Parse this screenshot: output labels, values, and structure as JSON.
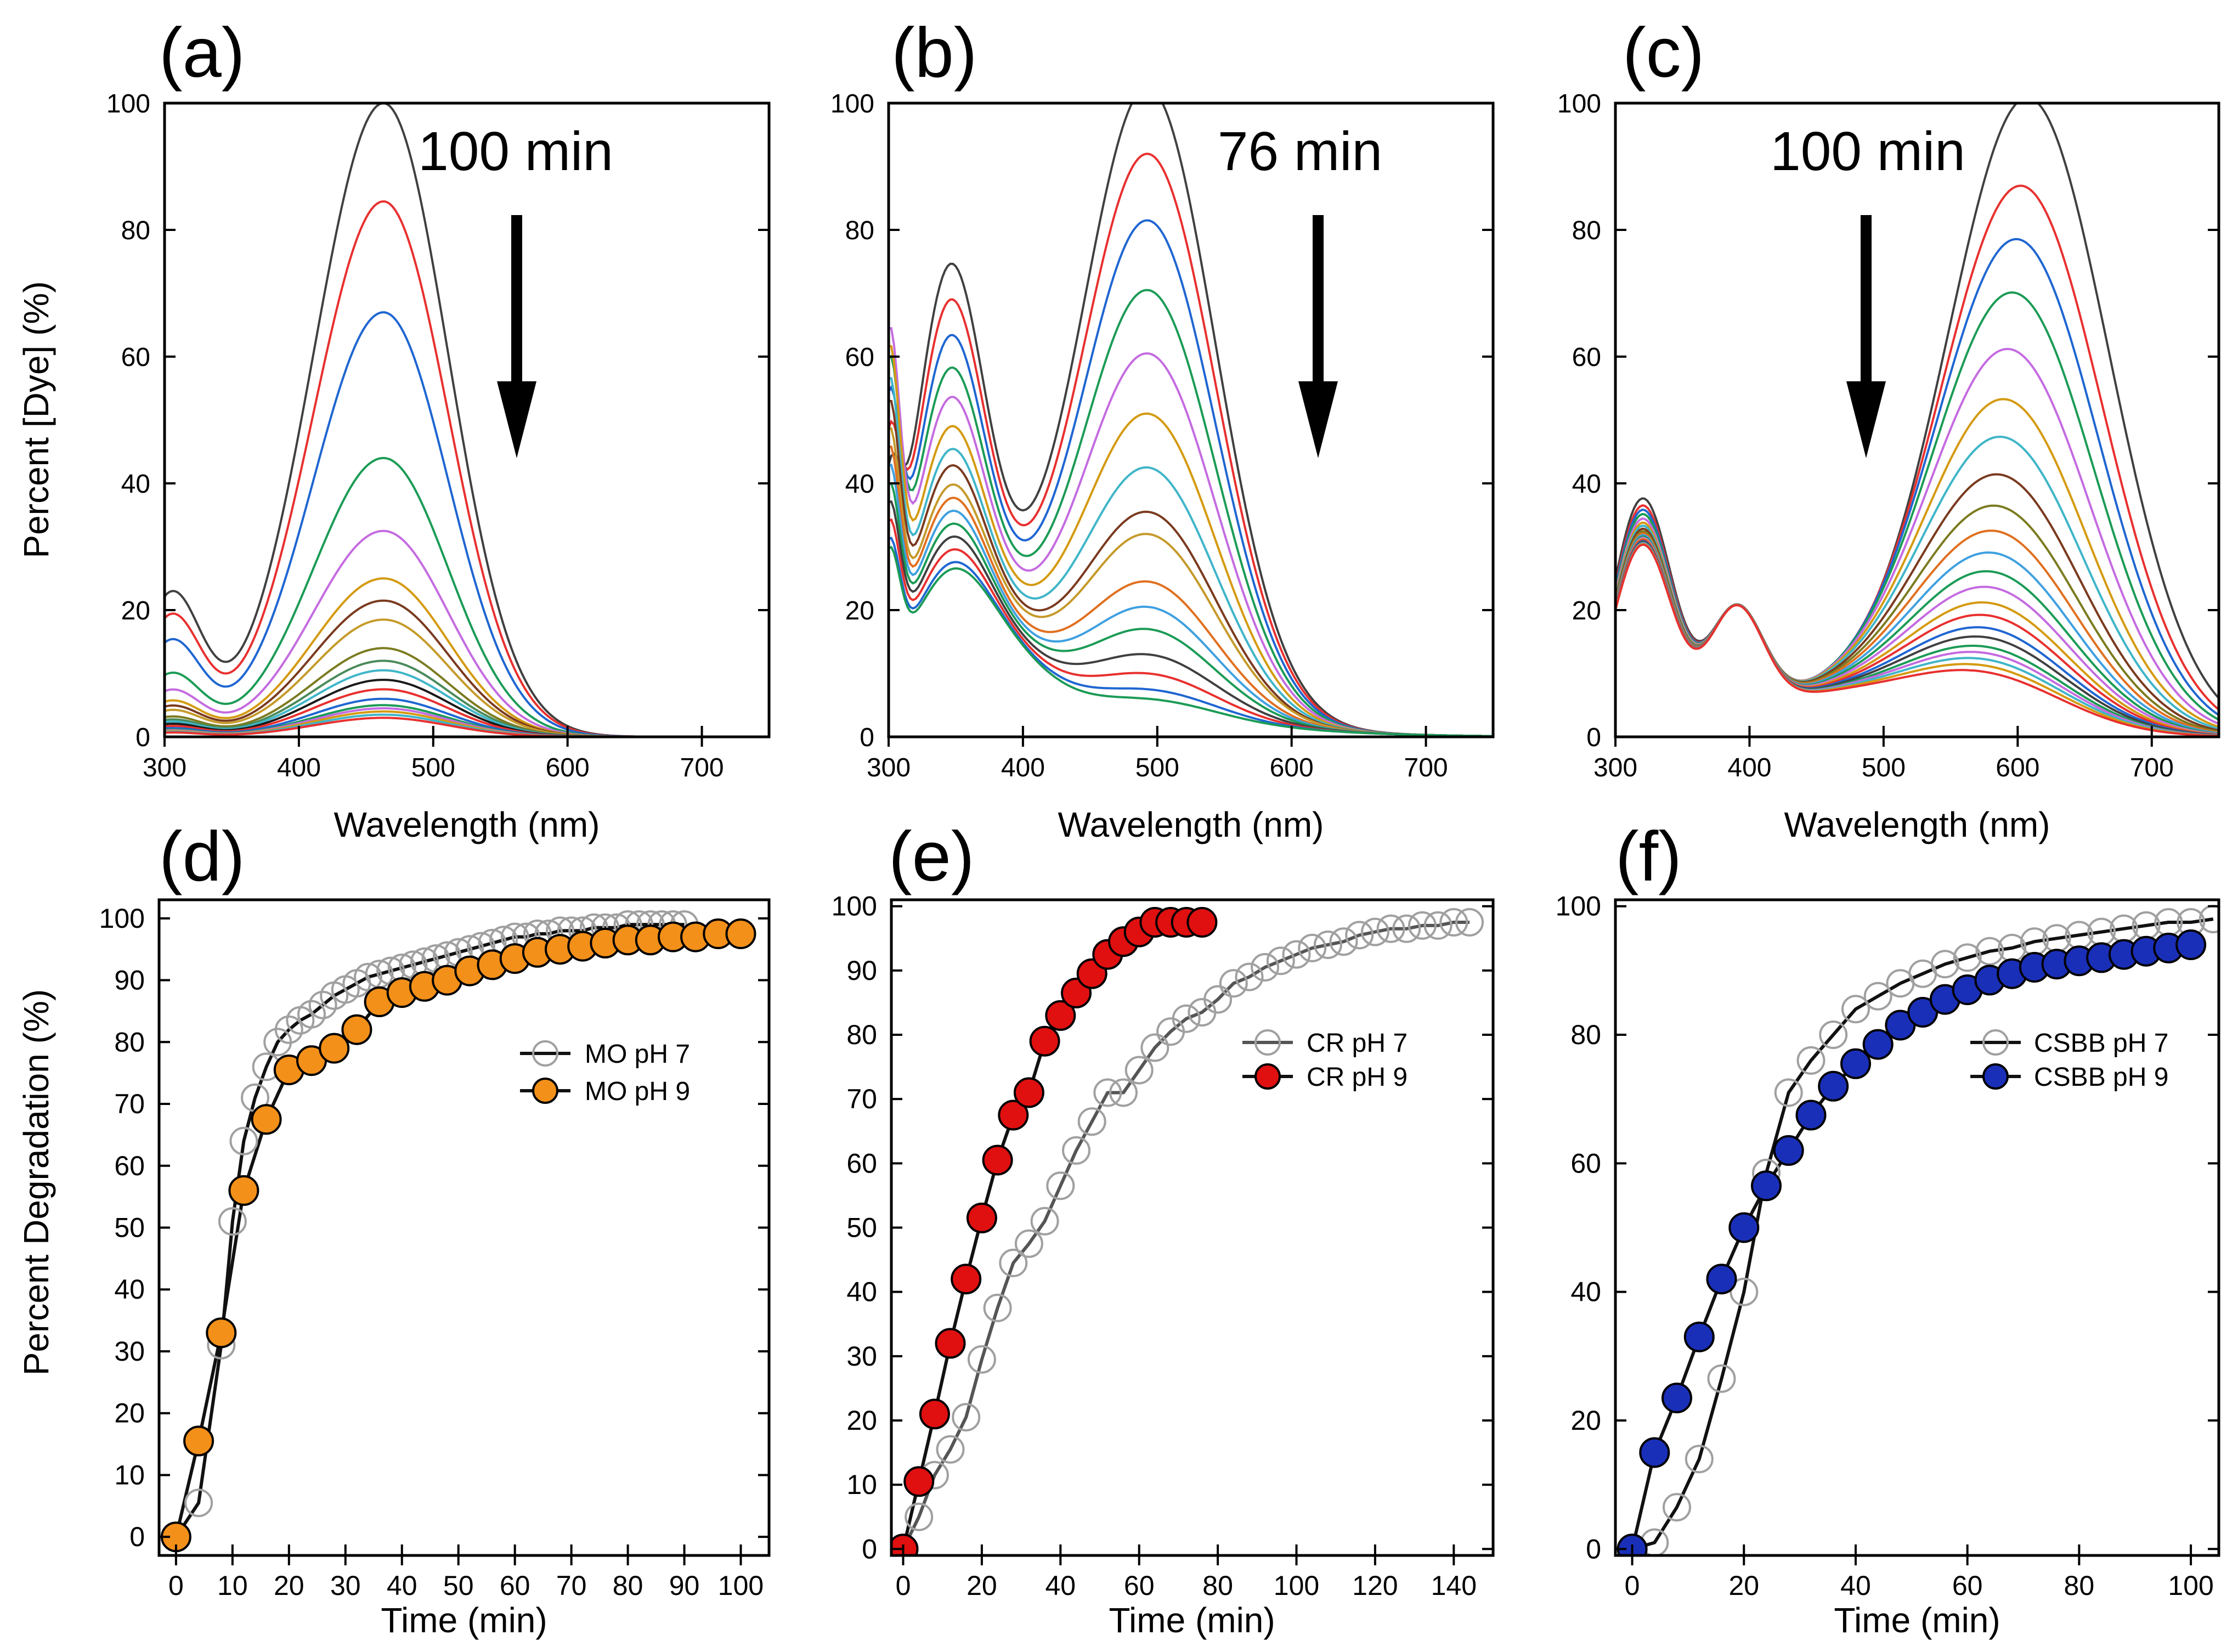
{
  "figure": {
    "ylabel_top": "Percent [Dye] (%)",
    "ylabel_bottom": "Percent Degradation (%)"
  },
  "chart_data": [
    {
      "panel": "(a)",
      "type": "line",
      "xlabel": "Wavelength (nm)",
      "xlim": [
        300,
        750
      ],
      "ylim": [
        0,
        100
      ],
      "xticks": [
        300,
        400,
        500,
        600,
        700
      ],
      "yticks": [
        0,
        20,
        40,
        60,
        80,
        100
      ],
      "annotation": "100 min",
      "arrow": "down",
      "model": {
        "peak_center": 463,
        "peak_width_left": 52,
        "peak_width_right": 48,
        "side_band_center": 305,
        "side_band_width": 22,
        "side_band_ratio": 0.22,
        "dip_center": 335
      },
      "peak_heights": [
        100,
        84.5,
        67,
        44,
        32.5,
        25,
        21.5,
        18.5,
        14,
        12,
        10.5,
        9,
        7.5,
        6,
        5,
        4.5,
        4,
        3.5,
        3
      ],
      "series_colors": [
        "#404040",
        "#e8302f",
        "#1f66d1",
        "#1b9b56",
        "#c46be0",
        "#d49a10",
        "#7a3a1f",
        "#c59a2a",
        "#7b7b20",
        "#4a8a5a",
        "#3fb5c8",
        "#1a1a1a",
        "#e8302f",
        "#1f66d1",
        "#1b9b56",
        "#c46be0",
        "#d49a10",
        "#3fb5c8",
        "#e8302f"
      ]
    },
    {
      "panel": "(b)",
      "type": "line",
      "xlabel": "Wavelength (nm)",
      "xlim": [
        300,
        750
      ],
      "ylim": [
        0,
        100
      ],
      "xticks": [
        300,
        400,
        500,
        600,
        700
      ],
      "yticks": [
        0,
        20,
        40,
        60,
        80,
        100
      ],
      "annotation": "76 min",
      "arrow": "down",
      "model": {
        "peak_center": 493,
        "peak_width": 50,
        "band2_center": 345,
        "band2_width": 25,
        "dip_center": 400
      },
      "peak_heights": [
        100,
        89.5,
        79,
        68,
        58,
        48.5,
        40,
        33,
        29.5,
        22,
        18,
        14.5,
        10.5,
        7.5,
        5,
        3.5
      ],
      "band_heights": [
        72,
        66.5,
        61,
        56,
        51.5,
        47,
        43.5,
        41,
        38,
        36,
        34,
        32,
        30,
        28,
        26,
        25
      ],
      "series_colors": [
        "#404040",
        "#e8302f",
        "#1f66d1",
        "#1b9b56",
        "#c46be0",
        "#d49a10",
        "#3fb5c8",
        "#7a3a1f",
        "#c59a2a",
        "#e07020",
        "#3fa0e0",
        "#1b9b56",
        "#404040",
        "#e8302f",
        "#1f66d1",
        "#1b9b56"
      ]
    },
    {
      "panel": "(c)",
      "type": "line",
      "xlabel": "Wavelength (nm)",
      "xlim": [
        300,
        750
      ],
      "ylim": [
        0,
        100
      ],
      "xticks": [
        300,
        400,
        500,
        600,
        700
      ],
      "yticks": [
        0,
        20,
        40,
        60,
        80,
        100
      ],
      "annotation": "100 min",
      "arrow": "down",
      "model": {
        "peak_center": 608,
        "peak_width": 60,
        "band2_center": 320,
        "band3_center": 390
      },
      "peak_heights": [
        100,
        86,
        77.5,
        69,
        60,
        52,
        46,
        40,
        35,
        31,
        27.5,
        24.5,
        22,
        19.5,
        17.5,
        15.5,
        14,
        12.5,
        11.5,
        10.5,
        9.5,
        8.5
      ],
      "series_colors": [
        "#404040",
        "#e8302f",
        "#1f66d1",
        "#1b9b56",
        "#c46be0",
        "#d49a10",
        "#3fb5c8",
        "#7a3a1f",
        "#7b7b20",
        "#e07020",
        "#3fa0e0",
        "#1b9b56",
        "#c46be0",
        "#d49a10",
        "#e8302f",
        "#1f66d1",
        "#404040",
        "#1b9b56",
        "#c46be0",
        "#3fb5c8",
        "#d49a10",
        "#e8302f"
      ]
    },
    {
      "panel": "(d)",
      "type": "scatter",
      "xlabel": "Time (min)",
      "xlim": [
        -3,
        105
      ],
      "ylim": [
        -3,
        103
      ],
      "xticks": [
        0,
        10,
        20,
        30,
        40,
        50,
        60,
        70,
        80,
        90,
        100
      ],
      "yticks": [
        0,
        10,
        20,
        30,
        40,
        50,
        60,
        70,
        80,
        90,
        100
      ],
      "legend_position": "upper-right",
      "series": [
        {
          "name": "MO pH 7",
          "marker": "open-circle",
          "marker_color": "#a0a0a0",
          "line_color": "#111111",
          "x": [
            0,
            4,
            8,
            10,
            12,
            14,
            16,
            18,
            20,
            22,
            24,
            26,
            28,
            30,
            32,
            34,
            36,
            38,
            40,
            42,
            44,
            46,
            48,
            50,
            52,
            54,
            56,
            58,
            60,
            62,
            64,
            66,
            68,
            70,
            72,
            74,
            76,
            78,
            80,
            82,
            84,
            86,
            88,
            90
          ],
          "y": [
            0,
            5.5,
            31,
            51,
            64,
            71,
            76,
            80,
            82,
            83.5,
            84.5,
            86,
            87.5,
            88.5,
            89.5,
            90.5,
            91,
            91.5,
            92,
            92.5,
            93,
            93.5,
            94,
            94.5,
            95,
            95.5,
            96,
            96.5,
            97,
            97,
            97.5,
            97.5,
            98,
            98,
            98,
            98.5,
            98.5,
            98.5,
            99,
            99,
            99,
            99,
            99,
            99
          ]
        },
        {
          "name": "MO pH 9",
          "marker": "filled-circle",
          "marker_color": "#f39019",
          "line_color": "#111111",
          "x": [
            0,
            4,
            8,
            12,
            16,
            20,
            24,
            28,
            32,
            36,
            40,
            44,
            48,
            52,
            56,
            60,
            64,
            68,
            72,
            76,
            80,
            84,
            88,
            92,
            96,
            100
          ],
          "y": [
            0,
            15.5,
            33,
            56,
            67.5,
            75.5,
            77,
            79,
            82,
            86.5,
            88,
            89,
            90,
            91.5,
            92.5,
            93.5,
            94.5,
            95,
            95.5,
            96,
            96.5,
            96.5,
            97,
            97,
            97.5,
            97.5
          ]
        }
      ]
    },
    {
      "panel": "(e)",
      "type": "scatter",
      "xlabel": "Time (min)",
      "xlim": [
        -3,
        150
      ],
      "ylim": [
        -1,
        101
      ],
      "xticks": [
        0,
        20,
        40,
        60,
        80,
        100,
        120,
        140
      ],
      "yticks": [
        0,
        10,
        20,
        30,
        40,
        50,
        60,
        70,
        80,
        90,
        100
      ],
      "legend_position": "center-right",
      "series": [
        {
          "name": "CR pH 7",
          "marker": "open-circle",
          "marker_color": "#a0a0a0",
          "line_color": "#555555",
          "x": [
            0,
            4,
            8,
            12,
            16,
            20,
            24,
            28,
            32,
            36,
            40,
            44,
            48,
            52,
            56,
            60,
            64,
            68,
            72,
            76,
            80,
            84,
            88,
            92,
            96,
            100,
            104,
            108,
            112,
            116,
            120,
            124,
            128,
            132,
            136,
            140,
            144
          ],
          "y": [
            0,
            5,
            11.5,
            15.5,
            20.5,
            29.5,
            37.5,
            44.5,
            47.5,
            51,
            56.5,
            62,
            66.5,
            71,
            71,
            74.5,
            78,
            80.5,
            82.5,
            83.5,
            85.5,
            88,
            89,
            90.5,
            91.5,
            92.5,
            93.5,
            94,
            94.5,
            95.5,
            96,
            96.5,
            96.5,
            97,
            97,
            97.5,
            97.5
          ]
        },
        {
          "name": "CR pH 9",
          "marker": "filled-circle",
          "marker_color": "#e01010",
          "line_color": "#111111",
          "x": [
            0,
            4,
            8,
            12,
            16,
            20,
            24,
            28,
            32,
            36,
            40,
            44,
            48,
            52,
            56,
            60,
            64,
            68,
            72,
            76
          ],
          "y": [
            0,
            10.5,
            21,
            32,
            42,
            51.5,
            60.5,
            67.5,
            71,
            79,
            83,
            86.5,
            89.5,
            92.5,
            94.5,
            96,
            97.5,
            97.5,
            97.5,
            97.5
          ]
        }
      ]
    },
    {
      "panel": "(f)",
      "type": "scatter",
      "xlabel": "Time (min)",
      "xlim": [
        -3,
        105
      ],
      "ylim": [
        -1,
        101
      ],
      "xticks": [
        0,
        20,
        40,
        60,
        80,
        100
      ],
      "yticks": [
        0,
        20,
        40,
        60,
        80,
        100
      ],
      "legend_position": "center-right",
      "series": [
        {
          "name": "CSBB pH 7",
          "marker": "open-circle",
          "marker_color": "#a0a0a0",
          "line_color": "#111111",
          "x": [
            0,
            4,
            8,
            12,
            16,
            20,
            24,
            28,
            32,
            36,
            40,
            44,
            48,
            52,
            56,
            60,
            64,
            68,
            72,
            76,
            80,
            84,
            88,
            92,
            96,
            100,
            104
          ],
          "y": [
            0,
            1,
            6.5,
            14,
            26.5,
            40,
            58.5,
            71,
            76,
            80,
            84,
            86,
            88,
            89.5,
            91,
            92,
            93,
            93.5,
            94.5,
            95,
            95.5,
            96,
            96.5,
            97,
            97.5,
            97.5,
            98
          ]
        },
        {
          "name": "CSBB pH 9",
          "marker": "filled-circle",
          "marker_color": "#1a2fb8",
          "line_color": "#111111",
          "x": [
            0,
            4,
            8,
            12,
            16,
            20,
            24,
            28,
            32,
            36,
            40,
            44,
            48,
            52,
            56,
            60,
            64,
            68,
            72,
            76,
            80,
            84,
            88,
            92,
            96,
            100
          ],
          "y": [
            0,
            15,
            23.5,
            33,
            42,
            50,
            56.5,
            62,
            67.5,
            72,
            75.5,
            78.5,
            81.5,
            83.5,
            85.5,
            87,
            88.5,
            89.5,
            90.5,
            91,
            91.5,
            92,
            92.5,
            93,
            93.5,
            94
          ]
        }
      ]
    }
  ]
}
